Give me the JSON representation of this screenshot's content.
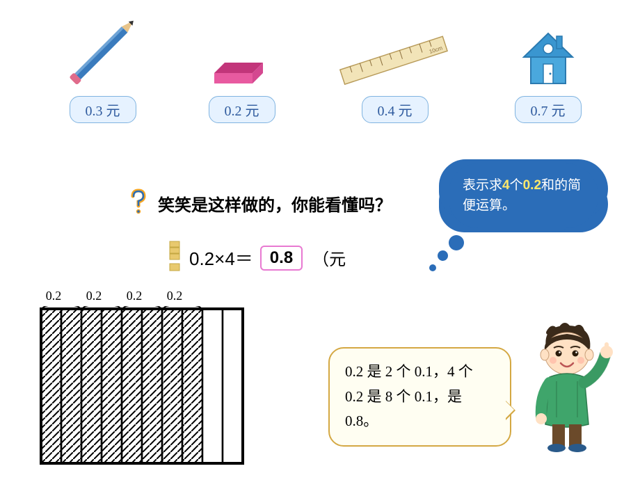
{
  "items": [
    {
      "name": "pencil",
      "price": "0.3 元",
      "color": "#3a7bbd"
    },
    {
      "name": "eraser",
      "price": "0.2 元",
      "color": "#e85aa0"
    },
    {
      "name": "ruler",
      "price": "0.4 元",
      "color": "#d9c27a"
    },
    {
      "name": "house",
      "price": "0.7 元",
      "color": "#3aa0d9"
    }
  ],
  "question": "笑笑是这样做的，你能看懂吗？",
  "equation": {
    "lhs": "0.2×4＝",
    "answer": "0.8",
    "unit": "（元"
  },
  "cloud": {
    "prefix": "表示求",
    "hl1": "4",
    "mid1": "个",
    "hl2": "0.2",
    "mid2": "和的简便运算。"
  },
  "grid": {
    "labels": [
      "0.2",
      "0.2",
      "0.2",
      "0.2"
    ],
    "total_columns": 10,
    "shaded_columns": 8,
    "shaded_groups": 4,
    "group_size": 2,
    "stroke": "#000000",
    "hatch": true
  },
  "speech": "0.2 是 2 个 0.1，4 个 0.2 是 8 个 0.1，是 0.8。",
  "colors": {
    "price_bg": "#e6f2ff",
    "price_border": "#7fb3e0",
    "price_text": "#2e5a9e",
    "answer_border": "#e879d1",
    "cloud_bg": "#2b6db8",
    "cloud_highlight": "#ffe86b",
    "speech_bg": "#fffef2",
    "speech_border": "#d4a843",
    "qmark_orange": "#f5a623",
    "qmark_blue": "#2b6db8",
    "excl_gold": "#d4a843"
  }
}
